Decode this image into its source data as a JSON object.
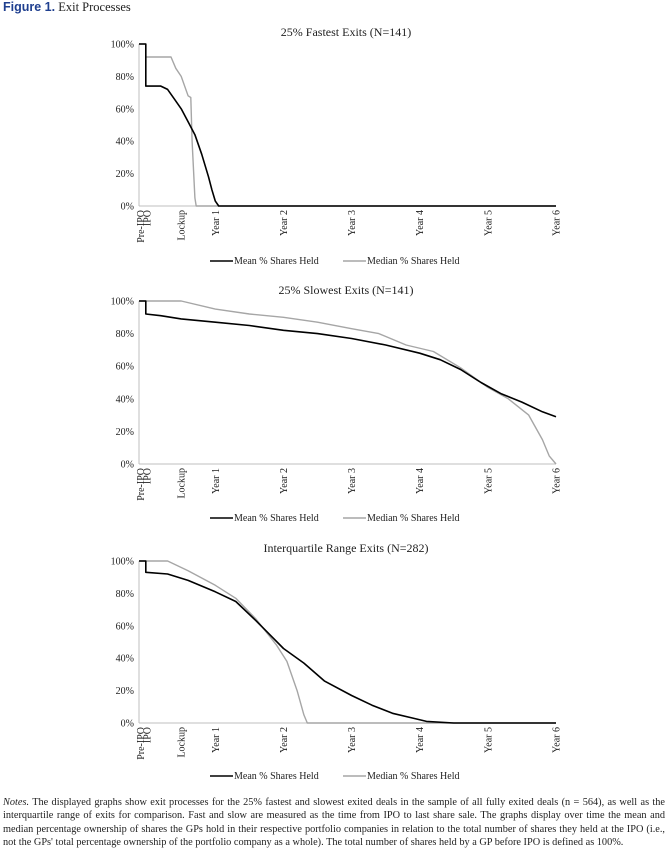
{
  "figure": {
    "label": "Figure 1.",
    "title": "Exit Processes"
  },
  "notes": {
    "label": "Notes.",
    "text": "The displayed graphs show exit processes for the 25% fastest and slowest exited deals in the sample of all fully exited deals (n = 564), as well as the interquartile range of exits for comparison. Fast and slow are measured as the time from IPO to last share sale. The graphs display over time the mean and median percentage ownership of shares the GPs hold in their respective portfolio companies in relation to the total number of shares they held at the IPO (i.e., not the GPs' total percentage ownership of the portfolio company as a whole). The total number of shares held by a GP before IPO is defined as 100%."
  },
  "colors": {
    "mean": "#000000",
    "median": "#a6a6a6",
    "axis": "#bfbfbf"
  },
  "chart_data": [
    {
      "type": "line",
      "title": "25% Fastest Exits (N=141)",
      "x_tick_labels": [
        "Pre-IPO",
        "IPO",
        "Lockup",
        "Year 1",
        "Year 2",
        "Year 3",
        "Year 4",
        "Year 5",
        "Year 6"
      ],
      "x_tick_values": [
        -0.1,
        0,
        0.5,
        1,
        2,
        3,
        4,
        5,
        6
      ],
      "xlim": [
        -0.12,
        6
      ],
      "y_tick_labels": [
        "0%",
        "20%",
        "40%",
        "60%",
        "80%",
        "100%"
      ],
      "ylim": [
        0,
        100
      ],
      "grid": false,
      "legend_position": "bottom",
      "series": [
        {
          "name": "Mean % Shares Held",
          "color_key": "mean",
          "x": [
            -0.12,
            -0.02,
            -0.02,
            0.2,
            0.3,
            0.4,
            0.5,
            0.6,
            0.7,
            0.8,
            0.9,
            0.95,
            1.0,
            1.05,
            6.0
          ],
          "y": [
            100,
            100,
            74,
            74,
            72,
            66,
            60,
            52,
            44,
            32,
            18,
            10,
            3,
            0,
            0
          ]
        },
        {
          "name": "Median % Shares Held",
          "color_key": "median",
          "x": [
            -0.12,
            -0.02,
            -0.02,
            0.35,
            0.42,
            0.5,
            0.6,
            0.64,
            0.66,
            0.7,
            0.72,
            6.0
          ],
          "y": [
            100,
            100,
            92,
            92,
            85,
            80,
            68,
            67,
            40,
            5,
            0,
            0
          ]
        }
      ]
    },
    {
      "type": "line",
      "title": "25% Slowest Exits (N=141)",
      "x_tick_labels": [
        "Pre-IPO",
        "IPO",
        "Lockup",
        "Year 1",
        "Year 2",
        "Year 3",
        "Year 4",
        "Year 5",
        "Year 6"
      ],
      "x_tick_values": [
        -0.1,
        0,
        0.5,
        1,
        2,
        3,
        4,
        5,
        6
      ],
      "xlim": [
        -0.12,
        6
      ],
      "y_tick_labels": [
        "0%",
        "20%",
        "40%",
        "60%",
        "80%",
        "100%"
      ],
      "ylim": [
        0,
        100
      ],
      "grid": false,
      "legend_position": "bottom",
      "series": [
        {
          "name": "Mean % Shares Held",
          "color_key": "mean",
          "x": [
            -0.12,
            -0.02,
            -0.02,
            0.2,
            0.5,
            1.0,
            1.5,
            2.0,
            2.5,
            3.0,
            3.5,
            4.0,
            4.3,
            4.6,
            4.9,
            5.2,
            5.5,
            5.8,
            6.0
          ],
          "y": [
            100,
            100,
            92,
            91,
            89,
            87,
            85,
            82,
            80,
            77,
            73,
            68,
            64,
            58,
            50,
            43,
            38,
            32,
            29
          ]
        },
        {
          "name": "Median % Shares Held",
          "color_key": "median",
          "x": [
            -0.12,
            -0.02,
            0.5,
            1.0,
            1.5,
            2.0,
            2.5,
            3.0,
            3.4,
            3.8,
            4.2,
            4.6,
            5.0,
            5.3,
            5.6,
            5.8,
            5.9,
            6.0
          ],
          "y": [
            100,
            100,
            100,
            95,
            92,
            90,
            87,
            83,
            80,
            73,
            69,
            59,
            47,
            40,
            30,
            15,
            5,
            0
          ]
        }
      ]
    },
    {
      "type": "line",
      "title": "Interquartile Range Exits (N=282)",
      "x_tick_labels": [
        "Pre-IPO",
        "IPO",
        "Lockup",
        "Year 1",
        "Year 2",
        "Year 3",
        "Year 4",
        "Year 5",
        "Year 6"
      ],
      "x_tick_values": [
        -0.1,
        0,
        0.5,
        1,
        2,
        3,
        4,
        5,
        6
      ],
      "xlim": [
        -0.12,
        6
      ],
      "y_tick_labels": [
        "0%",
        "20%",
        "40%",
        "60%",
        "80%",
        "100%"
      ],
      "ylim": [
        0,
        100
      ],
      "grid": false,
      "legend_position": "bottom",
      "series": [
        {
          "name": "Mean % Shares Held",
          "color_key": "mean",
          "x": [
            -0.12,
            -0.02,
            -0.02,
            0.3,
            0.6,
            1.0,
            1.3,
            1.6,
            2.0,
            2.3,
            2.6,
            3.0,
            3.3,
            3.6,
            3.9,
            4.1,
            4.5,
            6.0
          ],
          "y": [
            100,
            100,
            93,
            92,
            88,
            81,
            75,
            63,
            46,
            37,
            26,
            17,
            11,
            6,
            3,
            1,
            0,
            0
          ]
        },
        {
          "name": "Median % Shares Held",
          "color_key": "median",
          "x": [
            -0.12,
            -0.02,
            0.3,
            0.6,
            1.0,
            1.3,
            1.6,
            1.9,
            2.05,
            2.2,
            2.3,
            2.35,
            6.0
          ],
          "y": [
            100,
            100,
            100,
            94,
            85,
            77,
            64,
            48,
            38,
            20,
            5,
            0,
            0
          ]
        }
      ]
    }
  ],
  "legend": {
    "mean": "Mean % Shares Held",
    "median": "Median % Shares Held"
  }
}
